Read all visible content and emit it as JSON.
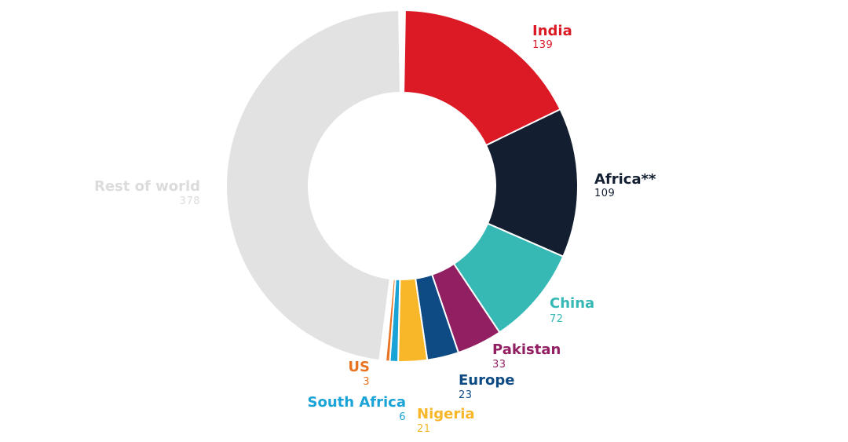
{
  "chart_data": {
    "type": "pie",
    "title": "",
    "slices": [
      {
        "label": "India",
        "value": 139,
        "display": "139",
        "color": "#db1a26"
      },
      {
        "label": "Africa**",
        "value": 109,
        "display": "109",
        "color": "#131f30"
      },
      {
        "label": "China",
        "value": 72,
        "display": "72",
        "color": "#36b8b5"
      },
      {
        "label": "Pakistan",
        "value": 33,
        "display": "33",
        "color": "#921f62"
      },
      {
        "label": "Europe",
        "value": 23,
        "display": "23",
        "color": "#0e4a84"
      },
      {
        "label": "Nigeria",
        "value": 21,
        "display": "21",
        "color": "#f7b728"
      },
      {
        "label": "South Africa",
        "value": 6,
        "display": "6",
        "color": "#1aa3d6"
      },
      {
        "label": "US",
        "value": 3,
        "display": "3",
        "color": "#e87422"
      },
      {
        "label": "Rest of world",
        "value": 378,
        "display": "378",
        "color": "#e2e2e2"
      }
    ]
  }
}
